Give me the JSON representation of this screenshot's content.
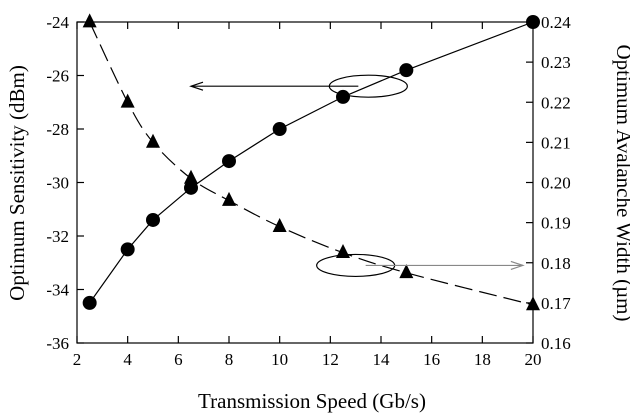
{
  "chart_data": {
    "type": "line",
    "title": "",
    "xlabel": "Transmission Speed (Gb/s)",
    "ylabel_left": "Optimum Sensitivity (dBm)",
    "ylabel_right": "Optimum Avalanche Width (µm)",
    "xlim": [
      2,
      20
    ],
    "ylim_left": [
      -36,
      -24
    ],
    "ylim_right": [
      0.16,
      0.24
    ],
    "x_ticks": [
      "2",
      "4",
      "6",
      "8",
      "10",
      "12",
      "14",
      "16",
      "18",
      "20"
    ],
    "y_left_ticks": [
      "-36",
      "-34",
      "-32",
      "-30",
      "-28",
      "-26",
      "-24"
    ],
    "y_right_ticks": [
      "0.16",
      "0.17",
      "0.18",
      "0.19",
      "0.20",
      "0.21",
      "0.22",
      "0.23",
      "0.24"
    ],
    "grid": false,
    "legend": "none",
    "series": [
      {
        "marker": "circle",
        "line_style": "solid",
        "axis": "left",
        "x": [
          2.5,
          4,
          5,
          6.5,
          8,
          10,
          12.5,
          15,
          20
        ],
        "values": [
          -34.5,
          -32.5,
          -31.4,
          -30.2,
          -29.2,
          -28.0,
          -26.8,
          -25.8,
          -24.0
        ]
      },
      {
        "marker": "triangle",
        "line_style": "dashed",
        "axis": "right",
        "x": [
          2.5,
          4,
          5,
          6.5,
          8,
          10,
          12.5,
          15,
          20
        ],
        "values": [
          0.24,
          0.22,
          0.21,
          0.201,
          0.1955,
          0.189,
          0.1825,
          0.1775,
          0.1695
        ]
      }
    ],
    "annotations": [
      {
        "type": "ellipse-arrow",
        "points_to": "left",
        "at_x": 13.5,
        "at_y_left": -26.4,
        "arrow_to_x": 6.5
      },
      {
        "type": "ellipse-arrow",
        "points_to": "right",
        "at_x": 13.0,
        "at_y_left": -33.1,
        "arrow_to_x": 19.6
      }
    ]
  }
}
